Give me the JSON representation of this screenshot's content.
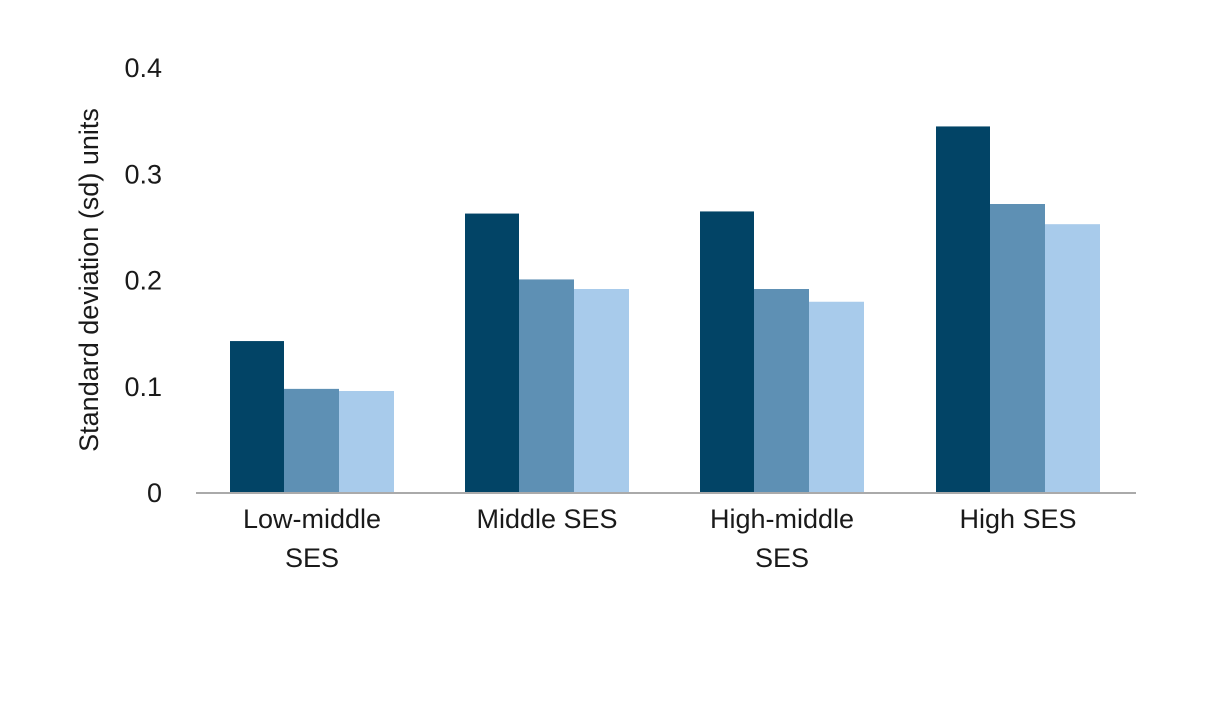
{
  "chart_data": {
    "type": "bar",
    "categories": [
      [
        "Low-middle",
        "SES"
      ],
      [
        "Middle SES"
      ],
      [
        "High-middle",
        "SES"
      ],
      [
        "High SES"
      ]
    ],
    "series": [
      {
        "values": [
          0.143,
          0.263,
          0.265,
          0.345
        ]
      },
      {
        "values": [
          0.098,
          0.201,
          0.192,
          0.272
        ]
      },
      {
        "values": [
          0.096,
          0.192,
          0.18,
          0.253
        ]
      }
    ],
    "ylabel": "Standard deviation (sd) units",
    "yticks": [
      "0",
      "0.1",
      "0.2",
      "0.3",
      "0.4"
    ],
    "ytick_values": [
      0,
      0.1,
      0.2,
      0.3,
      0.4
    ],
    "ylim": [
      0,
      0.4
    ],
    "grid": false,
    "legend": "none"
  },
  "colors": {
    "series": [
      "#024466",
      "#5e90b4",
      "#a8cbeb"
    ],
    "axis": "#aaaaaa",
    "text": "#1a1a1a"
  }
}
